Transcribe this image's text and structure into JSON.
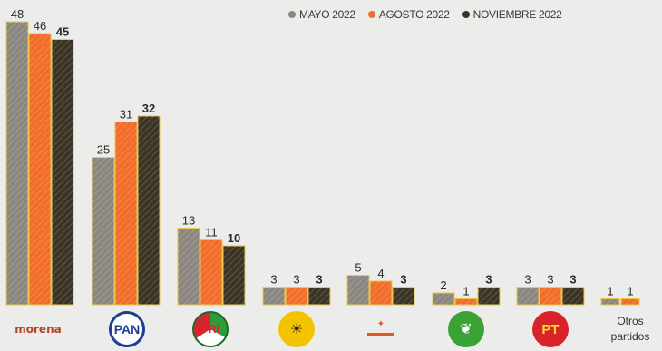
{
  "chart_data": {
    "type": "bar",
    "categories": [
      "morena",
      "PAN",
      "PRI",
      "PRD",
      "MC",
      "PVEM",
      "PT",
      "Otros partidos"
    ],
    "series": [
      {
        "name": "MAYO 2022",
        "color": "#8b8680",
        "values": [
          48,
          25,
          13,
          3,
          5,
          2,
          3,
          1
        ],
        "labels": [
          "48",
          "25",
          "13",
          "3",
          "5",
          "2",
          "3",
          "1"
        ]
      },
      {
        "name": "AGOSTO 2022",
        "color": "#f26c2a",
        "values": [
          46,
          31,
          11,
          3,
          4,
          1,
          3,
          1
        ],
        "labels": [
          "46",
          "31",
          "11",
          "3",
          "4",
          "1",
          "3",
          "1"
        ]
      },
      {
        "name": "NOVIEMBRE 2022",
        "color": "#3b3424",
        "values": [
          45,
          32,
          10,
          3,
          3,
          3,
          3,
          null
        ],
        "labels": [
          "45",
          "32",
          "10",
          "3",
          "3",
          "3",
          "3",
          ""
        ]
      }
    ],
    "ylim": [
      0,
      48
    ],
    "grid": false,
    "legend_position": "top-right",
    "title": "",
    "xlabel": "",
    "ylabel": ""
  },
  "logos": {
    "morena": {
      "text": "morena",
      "icon": "morena-logo"
    },
    "pan": {
      "text": "PAN",
      "icon": "pan-logo"
    },
    "pri": {
      "text": "PRI",
      "icon": "pri-logo"
    },
    "prd": {
      "text": "",
      "icon": "prd-sun-logo"
    },
    "mc": {
      "text": "",
      "icon": "mc-eagle-logo"
    },
    "pvem": {
      "text": "",
      "icon": "pvem-toucan-logo"
    },
    "pt": {
      "text": "PT",
      "icon": "pt-star-logo"
    },
    "otros": {
      "line1": "Otros",
      "line2": "partidos"
    }
  }
}
